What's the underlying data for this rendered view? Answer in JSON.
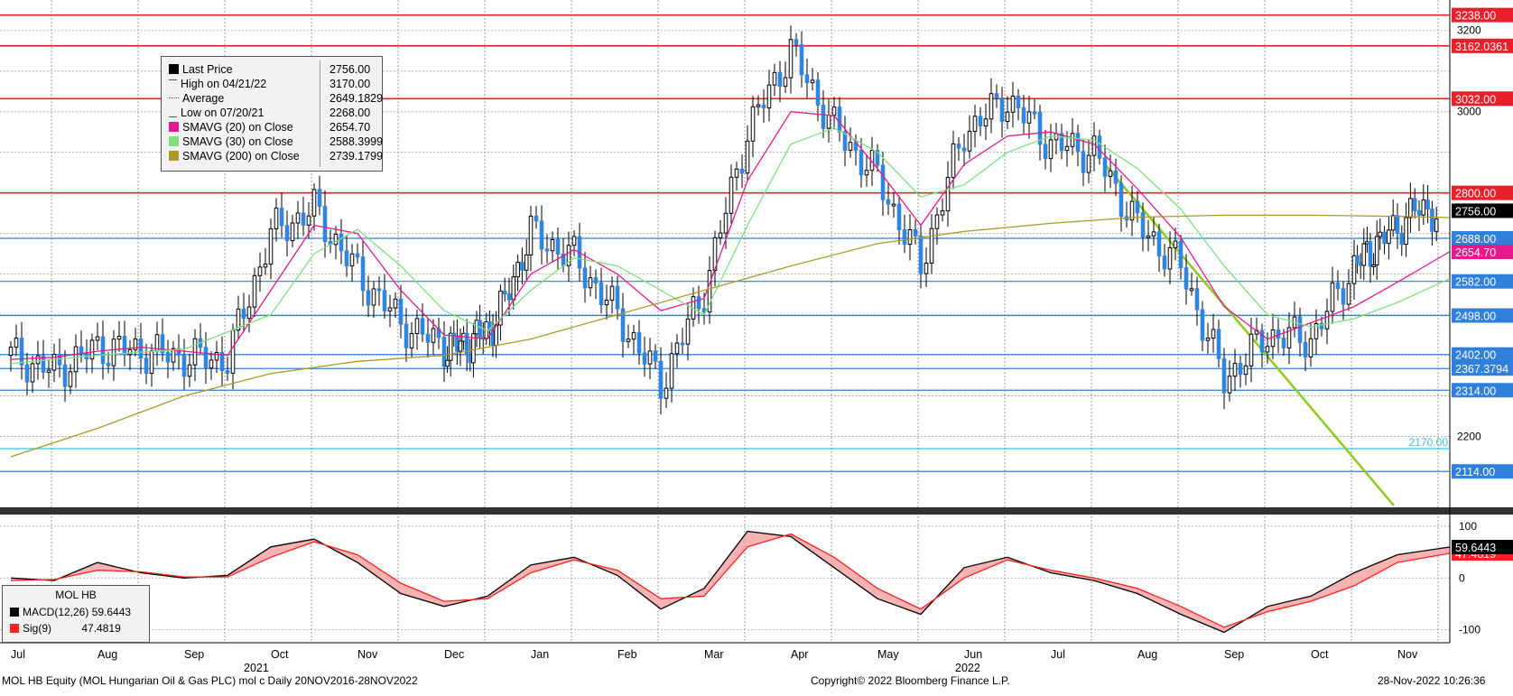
{
  "footer": {
    "left": "MOL HB Equity (MOL Hungarian Oil & Gas PLC) mol c  Daily 20NOV2016-28NOV2022",
    "center": "Copyright© 2022 Bloomberg Finance L.P.",
    "right": "28-Nov-2022 10:26:36"
  },
  "legend": [
    {
      "label": "Last Price",
      "value": "2756.00",
      "icon": "black-square-icon",
      "color": "#000000"
    },
    {
      "label": "High on 04/21/22",
      "value": "3170.00",
      "icon": "high-marker-icon",
      "color": "#555555"
    },
    {
      "label": "Average",
      "value": "2649.1829",
      "icon": "average-marker-icon",
      "color": "#555555"
    },
    {
      "label": "Low on 07/20/21",
      "value": "2268.00",
      "icon": "low-marker-icon",
      "color": "#555555"
    },
    {
      "label": "SMAVG (20)  on Close",
      "value": "2654.70",
      "icon": "pink-square-icon",
      "color": "#e6198c"
    },
    {
      "label": "SMAVG (30)  on Close",
      "value": "2588.3999",
      "icon": "green-square-icon",
      "color": "#7fe07f"
    },
    {
      "label": "SMAVG (200)  on Close",
      "value": "2739.1799",
      "icon": "olive-square-icon",
      "color": "#a89a2a"
    }
  ],
  "macd_legend": {
    "title": "MOL HB",
    "rows": [
      {
        "label": "MACD(12,26)",
        "value": "59.6443",
        "color": "#000000"
      },
      {
        "label": "Sig(9)",
        "value": "47.4819",
        "color": "#ff2020"
      }
    ]
  },
  "chart_data": [
    {
      "type": "candlestick",
      "title": "",
      "ylim": [
        2030,
        3275
      ],
      "y_ticks": [
        2200,
        3000,
        3200
      ],
      "x_month_labels": [
        "Jul",
        "Aug",
        "Sep",
        "Oct",
        "Nov",
        "Dec",
        "Jan",
        "Feb",
        "Mar",
        "Apr",
        "May",
        "Jun",
        "Jul",
        "Aug",
        "Sep",
        "Oct",
        "Nov"
      ],
      "x_year_labels": [
        "2021",
        "2022"
      ],
      "grid": true,
      "horizontal_levels": [
        {
          "value": 3238.0,
          "label": "3238.00",
          "color": "#e8202a"
        },
        {
          "value": 3162.0361,
          "label": "3162.0361",
          "color": "#e8202a"
        },
        {
          "value": 3032.0,
          "label": "3032.00",
          "color": "#e8202a"
        },
        {
          "value": 2800.0,
          "label": "2800.00",
          "color": "#e8202a"
        },
        {
          "value": 2688.0,
          "label": "2688.00",
          "color": "#2f7fdc"
        },
        {
          "value": 2582.0,
          "label": "2582.00",
          "color": "#2f7fdc"
        },
        {
          "value": 2498.0,
          "label": "2498.00",
          "color": "#2f7fdc"
        },
        {
          "value": 2402.0,
          "label": "2402.00",
          "color": "#2f7fdc"
        },
        {
          "value": 2367.3794,
          "label": "2367.3794",
          "color": "#2f7fdc"
        },
        {
          "value": 2314.0,
          "label": "2314.00",
          "color": "#2f7fdc"
        },
        {
          "value": 2170.0,
          "label": "2170.00",
          "color": "#3fbfe8"
        },
        {
          "value": 2114.0,
          "label": "2114.00",
          "color": "#2f7fdc"
        }
      ],
      "value_tags": [
        {
          "value": 2756.0,
          "label": "2756.00",
          "color": "#000000"
        },
        {
          "value": 2654.7,
          "label": "2654.70",
          "color": "#e6198c"
        }
      ],
      "series": [
        {
          "name": "Last Price",
          "kind": "close",
          "color": "#000000",
          "x": [
            0,
            0.5,
            1,
            1.5,
            2,
            2.5,
            3,
            3.5,
            4,
            4.5,
            5,
            5.3,
            5.6,
            6,
            6.5,
            7,
            7.5,
            8,
            8.5,
            9,
            9.5,
            10,
            10.5,
            11,
            11.5,
            12,
            12.5,
            13,
            13.5,
            14,
            14.5,
            15,
            15.5,
            15.8,
            16.2,
            16.6
          ],
          "values": [
            2400,
            2360,
            2420,
            2410,
            2395,
            2390,
            2700,
            2760,
            2600,
            2480,
            2420,
            2430,
            2480,
            2700,
            2640,
            2500,
            2330,
            2560,
            2950,
            3150,
            2960,
            2840,
            2620,
            2950,
            3030,
            2920,
            2900,
            2720,
            2620,
            2340,
            2450,
            2440,
            2620,
            2680,
            2756,
            2756
          ]
        },
        {
          "name": "SMAVG (20)",
          "color": "#e6198c",
          "x": [
            0,
            0.5,
            1,
            1.5,
            2,
            2.5,
            3,
            3.5,
            4,
            4.5,
            5,
            5.5,
            6,
            6.5,
            7,
            7.5,
            8,
            8.5,
            9,
            9.5,
            10,
            10.5,
            11,
            11.5,
            12,
            12.5,
            13,
            13.5,
            14,
            14.5,
            15,
            15.5,
            16,
            16.6
          ],
          "values": [
            2390,
            2395,
            2410,
            2420,
            2410,
            2400,
            2560,
            2720,
            2700,
            2560,
            2450,
            2440,
            2600,
            2660,
            2600,
            2510,
            2540,
            2830,
            3000,
            2990,
            2860,
            2720,
            2870,
            2940,
            2950,
            2920,
            2810,
            2690,
            2520,
            2440,
            2480,
            2520,
            2580,
            2654.7
          ]
        },
        {
          "name": "SMAVG (30)",
          "color": "#7fe07f",
          "x": [
            0,
            1,
            2,
            3,
            3.5,
            4,
            4.5,
            5,
            5.5,
            6,
            6.5,
            7,
            7.5,
            8,
            8.5,
            9,
            9.5,
            10,
            10.5,
            11,
            11.5,
            12,
            12.5,
            13,
            13.5,
            14,
            14.5,
            15,
            15.5,
            16,
            16.6
          ],
          "values": [
            2380,
            2400,
            2415,
            2500,
            2650,
            2710,
            2620,
            2510,
            2460,
            2560,
            2640,
            2620,
            2560,
            2500,
            2720,
            2920,
            2960,
            2900,
            2790,
            2820,
            2900,
            2940,
            2930,
            2860,
            2760,
            2620,
            2500,
            2470,
            2490,
            2530,
            2588.3999
          ]
        },
        {
          "name": "SMAVG (200)",
          "color": "#a89a2a",
          "x": [
            0,
            1,
            2,
            3,
            4,
            5,
            6,
            7,
            8,
            9,
            10,
            11,
            12,
            13,
            14,
            15,
            16,
            16.6
          ],
          "values": [
            2150,
            2220,
            2300,
            2355,
            2385,
            2400,
            2440,
            2500,
            2560,
            2620,
            2675,
            2705,
            2725,
            2740,
            2745,
            2745,
            2742,
            2739.1799
          ]
        }
      ]
    },
    {
      "type": "line",
      "title": "",
      "ylim": [
        -118,
        112
      ],
      "y_ticks": [
        100,
        0,
        -100
      ],
      "value_tags": [
        {
          "value": 59.6443,
          "label": "59.6443",
          "color": "#000000"
        },
        {
          "value": 47.4819,
          "label": "47.4819",
          "color": "#ff2020"
        }
      ],
      "series": [
        {
          "name": "MACD(12,26)",
          "color": "#000000",
          "x": [
            0,
            0.5,
            1,
            1.5,
            2,
            2.5,
            3,
            3.5,
            4,
            4.5,
            5,
            5.5,
            6,
            6.5,
            7,
            7.5,
            8,
            8.5,
            9,
            9.5,
            10,
            10.5,
            11,
            11.5,
            12,
            12.5,
            13,
            13.5,
            14,
            14.5,
            15,
            15.5,
            16,
            16.6
          ],
          "values": [
            0,
            -5,
            30,
            10,
            0,
            5,
            60,
            75,
            30,
            -30,
            -55,
            -35,
            25,
            40,
            5,
            -60,
            -20,
            90,
            80,
            20,
            -40,
            -70,
            20,
            40,
            10,
            -5,
            -30,
            -70,
            -105,
            -55,
            -35,
            10,
            45,
            59.6443
          ]
        },
        {
          "name": "Sig(9)",
          "color": "#ff2020",
          "x": [
            0,
            0.5,
            1,
            1.5,
            2,
            2.5,
            3,
            3.5,
            4,
            4.5,
            5,
            5.5,
            6,
            6.5,
            7,
            7.5,
            8,
            8.5,
            9,
            9.5,
            10,
            10.5,
            11,
            11.5,
            12,
            12.5,
            13,
            13.5,
            14,
            14.5,
            15,
            15.5,
            16,
            16.6
          ],
          "values": [
            -5,
            -3,
            15,
            12,
            2,
            2,
            40,
            70,
            45,
            -10,
            -45,
            -40,
            10,
            35,
            15,
            -40,
            -35,
            60,
            85,
            40,
            -20,
            -60,
            0,
            35,
            15,
            0,
            -20,
            -55,
            -95,
            -65,
            -45,
            -15,
            30,
            47.4819
          ]
        }
      ]
    }
  ]
}
